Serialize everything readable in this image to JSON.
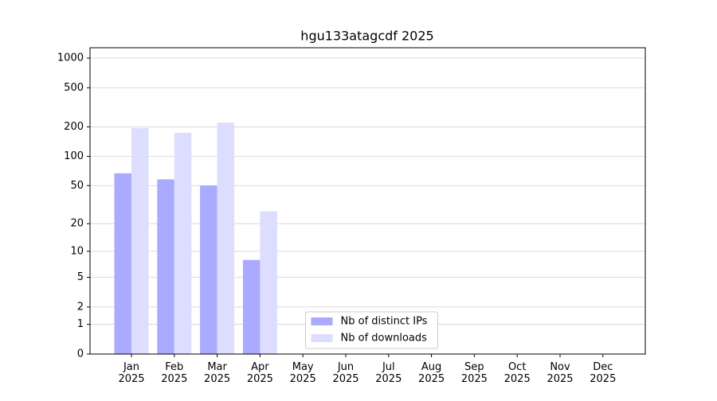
{
  "chart_data": {
    "type": "bar",
    "title": "hgu133atagcdf 2025",
    "categories": [
      "Jan\n2025",
      "Feb\n2025",
      "Mar\n2025",
      "Apr\n2025",
      "May\n2025",
      "Jun\n2025",
      "Jul\n2025",
      "Aug\n2025",
      "Sep\n2025",
      "Oct\n2025",
      "Nov\n2025",
      "Dec\n2025"
    ],
    "series": [
      {
        "name": "Nb of distinct IPs",
        "color": "#aaaaff",
        "values": [
          67,
          58,
          50,
          8,
          null,
          null,
          null,
          null,
          null,
          null,
          null,
          null
        ]
      },
      {
        "name": "Nb of downloads",
        "color": "#ddddff",
        "values": [
          194,
          174,
          221,
          27,
          null,
          null,
          null,
          null,
          null,
          null,
          null,
          null
        ]
      }
    ],
    "yscale": "log1p",
    "ylim": [
      0,
      1273
    ],
    "yticks": [
      0,
      1,
      2,
      5,
      10,
      20,
      50,
      100,
      200,
      500,
      1000
    ],
    "grid": true,
    "legend": "lower center"
  }
}
